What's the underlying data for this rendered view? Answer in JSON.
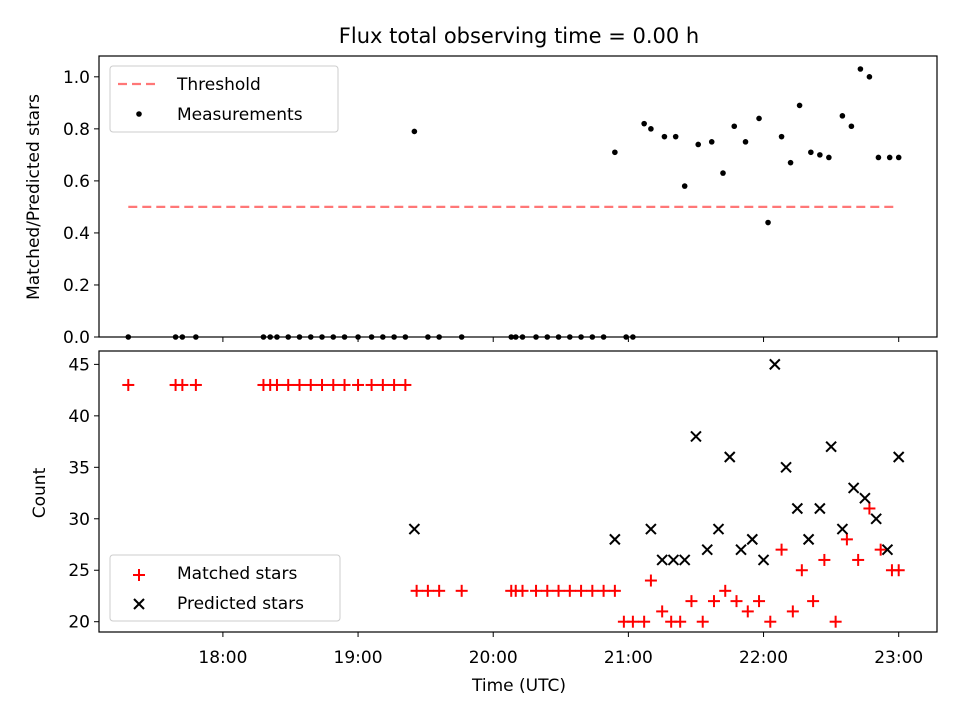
{
  "title": "Flux total observing time = 0.00 h",
  "colors": {
    "threshold": "#ff7777",
    "measurement": "#000000",
    "matched": "#ff0000",
    "predicted": "#000000"
  },
  "chart_data": [
    {
      "type": "scatter",
      "ylabel": "Matched/Predicted stars",
      "ylim": [
        0,
        1.08
      ],
      "yticks": [
        0.0,
        0.2,
        0.4,
        0.6,
        0.8,
        1.0
      ],
      "ytick_labels": [
        "0.0",
        "0.2",
        "0.4",
        "0.6",
        "0.8",
        "1.0"
      ],
      "xlim": [
        "17:05",
        "23:17"
      ],
      "legend_position": "top-left",
      "series": [
        {
          "name": "Threshold",
          "style": "dashed-line",
          "x": [
            "17:18",
            "22:58"
          ],
          "y": [
            0.5,
            0.5
          ]
        },
        {
          "name": "Measurements",
          "style": "dot",
          "x": [
            "17:18",
            "17:39",
            "17:42",
            "17:48",
            "18:18",
            "18:21",
            "18:24",
            "18:29",
            "18:34",
            "18:39",
            "18:44",
            "18:49",
            "18:54",
            "19:00",
            "19:06",
            "19:11",
            "19:16",
            "19:21",
            "19:25",
            "19:31",
            "19:36",
            "19:46",
            "20:08",
            "20:10",
            "20:13",
            "20:19",
            "20:24",
            "20:29",
            "20:34",
            "20:39",
            "20:44",
            "20:49",
            "20:54",
            "20:59",
            "21:02",
            "21:07",
            "21:10",
            "21:16",
            "21:21",
            "21:25",
            "21:31",
            "21:37",
            "21:42",
            "21:47",
            "21:52",
            "21:58",
            "22:02",
            "22:08",
            "22:12",
            "22:16",
            "22:21",
            "22:25",
            "22:29",
            "22:35",
            "22:39",
            "22:43",
            "22:47",
            "22:51",
            "22:56",
            "23:00"
          ],
          "y": [
            0,
            0,
            0,
            0,
            0,
            0,
            0,
            0,
            0,
            0,
            0,
            0,
            0,
            0,
            0,
            0,
            0,
            0,
            0.79,
            0,
            0,
            0,
            0,
            0,
            0,
            0,
            0,
            0,
            0,
            0,
            0,
            0,
            0.71,
            0,
            0,
            0.82,
            0.8,
            0.77,
            0.77,
            0.58,
            0.74,
            0.75,
            0.63,
            0.81,
            0.75,
            0.84,
            0.44,
            0.77,
            0.67,
            0.89,
            0.71,
            0.7,
            0.69,
            0.85,
            0.81,
            1.03,
            1.0,
            0.69,
            0.69,
            0.69
          ]
        }
      ]
    },
    {
      "type": "scatter",
      "xlabel": "Time (UTC)",
      "ylabel": "Count",
      "ylim": [
        19.0,
        46.3
      ],
      "yticks": [
        20,
        25,
        30,
        35,
        40,
        45
      ],
      "ytick_labels": [
        "20",
        "25",
        "30",
        "35",
        "40",
        "45"
      ],
      "xlim": [
        "17:05",
        "23:17"
      ],
      "xticks": [
        "18:00",
        "19:00",
        "20:00",
        "21:00",
        "22:00",
        "23:00"
      ],
      "xtick_labels": [
        "18:00",
        "19:00",
        "20:00",
        "21:00",
        "22:00",
        "23:00"
      ],
      "legend_position": "bottom-left",
      "series": [
        {
          "name": "Matched stars",
          "style": "plus",
          "x": [
            "17:18",
            "17:39",
            "17:42",
            "17:48",
            "18:18",
            "18:21",
            "18:24",
            "18:29",
            "18:34",
            "18:39",
            "18:44",
            "18:49",
            "18:54",
            "19:00",
            "19:06",
            "19:11",
            "19:16",
            "19:21",
            "19:26",
            "19:31",
            "19:36",
            "19:46",
            "20:08",
            "20:10",
            "20:13",
            "20:19",
            "20:24",
            "20:29",
            "20:34",
            "20:39",
            "20:44",
            "20:49",
            "20:54",
            "20:58",
            "21:02",
            "21:07",
            "21:10",
            "21:15",
            "21:19",
            "21:23",
            "21:28",
            "21:33",
            "21:38",
            "21:43",
            "21:48",
            "21:53",
            "21:58",
            "22:03",
            "22:08",
            "22:13",
            "22:17",
            "22:22",
            "22:27",
            "22:32",
            "22:37",
            "22:42",
            "22:47",
            "22:52",
            "22:57",
            "23:00"
          ],
          "y": [
            43,
            43,
            43,
            43,
            43,
            43,
            43,
            43,
            43,
            43,
            43,
            43,
            43,
            43,
            43,
            43,
            43,
            43,
            23,
            23,
            23,
            23,
            23,
            23,
            23,
            23,
            23,
            23,
            23,
            23,
            23,
            23,
            23,
            20,
            20,
            20,
            24,
            21,
            20,
            20,
            22,
            20,
            22,
            23,
            22,
            21,
            22,
            20,
            27,
            21,
            25,
            22,
            26,
            20,
            28,
            26,
            31,
            27,
            25,
            25
          ]
        },
        {
          "name": "Predicted stars",
          "style": "x",
          "x": [
            "19:25",
            "20:54",
            "21:10",
            "21:15",
            "21:20",
            "21:25",
            "21:30",
            "21:35",
            "21:40",
            "21:45",
            "21:50",
            "21:55",
            "22:00",
            "22:05",
            "22:10",
            "22:15",
            "22:20",
            "22:25",
            "22:30",
            "22:35",
            "22:40",
            "22:45",
            "22:50",
            "22:55",
            "23:00"
          ],
          "y": [
            29,
            28,
            29,
            26,
            26,
            26,
            38,
            27,
            29,
            36,
            27,
            28,
            26,
            45,
            35,
            31,
            28,
            31,
            37,
            29,
            33,
            32,
            30,
            27,
            36
          ]
        }
      ]
    }
  ]
}
